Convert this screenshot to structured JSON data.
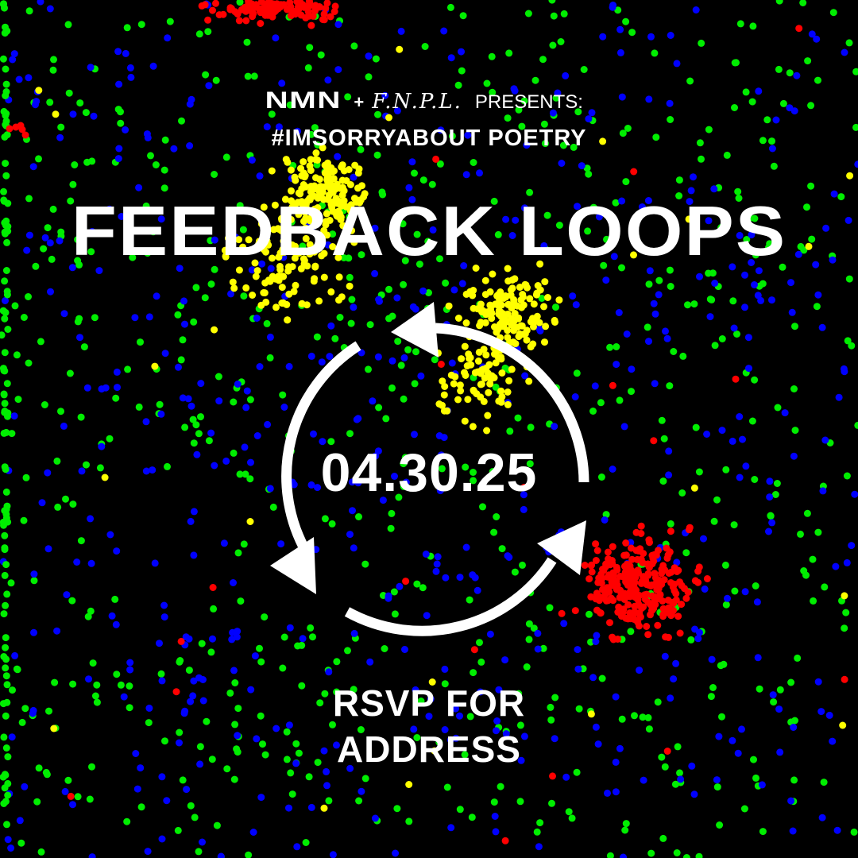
{
  "header": {
    "host_logo": "NMN",
    "plus": "+",
    "partner_logo": "F.N.P.L.",
    "presents": "PRESENTS:",
    "hashtag": "#IMSORRYABOUT POETRY"
  },
  "event": {
    "title": "FEEDBACK LOOPS",
    "date": "04.30.25"
  },
  "footer": {
    "rsvp_line_1": "RSVP FOR",
    "rsvp_line_2": "ADDRESS"
  },
  "icons": {
    "cycle": "circular-arrows-icon"
  },
  "colors": {
    "background": "#000000",
    "text": "#ffffff",
    "dot_red": "#ff0000",
    "dot_green": "#00ee00",
    "dot_blue": "#0000ff",
    "dot_yellow": "#ffff00"
  }
}
